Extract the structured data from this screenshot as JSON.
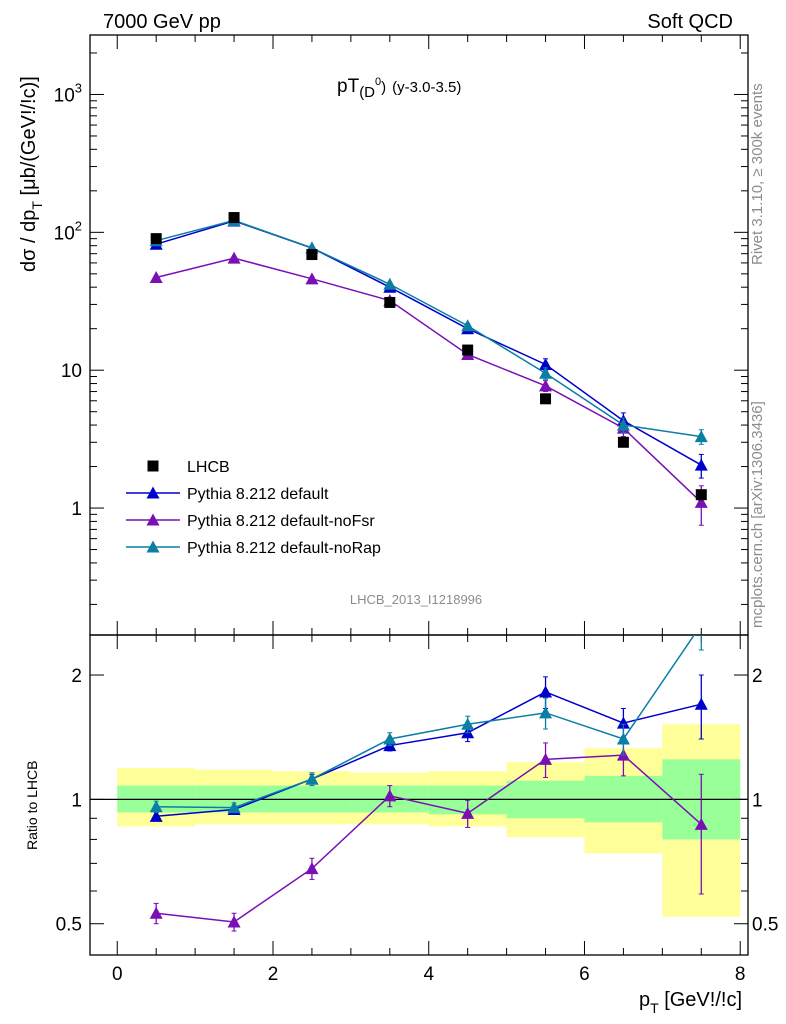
{
  "header": {
    "left": "7000 GeV pp",
    "right": "Soft QCD"
  },
  "side_text": {
    "rivet": "Rivet 3.1.10, ≥ 300k events",
    "mcplots": "mcplots.cern.ch [arXiv:1306.3436]"
  },
  "chart_data": [
    {
      "type": "scatter",
      "panel": "main",
      "title_main": "pT",
      "title_sub": "(D",
      "title_sup": "0",
      "title_close": ")",
      "title_range": "(y-3.0-3.5)",
      "ylabel_main": "dσ / dp",
      "ylabel_sub": "T",
      "ylabel_rest": " [μb/(GeV!/!c)]",
      "watermark": "LHCB_2013_I1218996",
      "yscale": "log",
      "xlim": [
        -0.35,
        8.1
      ],
      "ylim": [
        0.12,
        2700
      ],
      "ytick_labels": [
        "1",
        "10",
        "10",
        "10"
      ],
      "ytick_sups": [
        "",
        "",
        "2",
        "3"
      ],
      "x": [
        0.5,
        1.5,
        2.5,
        3.5,
        4.5,
        5.5,
        6.5,
        7.5
      ],
      "series": [
        {
          "name": "LHCB",
          "color": "#000000",
          "marker": "square",
          "values": [
            90,
            128,
            69,
            31,
            14,
            6.2,
            3.0,
            1.25
          ],
          "errors": [
            2,
            3,
            2,
            1,
            0.5,
            0.3,
            0.15,
            0.1
          ]
        },
        {
          "name": "Pythia 8.212 default",
          "color": "#0000cc",
          "marker": "triangle",
          "values": [
            82,
            121,
            77,
            40,
            20,
            11,
            4.3,
            2.05
          ],
          "errors": [
            1.5,
            2,
            1.5,
            1,
            0.8,
            1.1,
            0.6,
            0.4
          ]
        },
        {
          "name": "Pythia 8.212 default-noFsr",
          "color": "#7a0fb4",
          "marker": "triangle",
          "values": [
            47,
            65,
            46,
            32,
            13,
            7.7,
            3.8,
            1.1
          ],
          "errors": [
            1.2,
            1.5,
            1.2,
            1,
            0.8,
            0.7,
            0.5,
            0.35
          ]
        },
        {
          "name": "Pythia 8.212 default-noRap",
          "color": "#0a7ea4",
          "marker": "triangle",
          "values": [
            87,
            122,
            77,
            42,
            21,
            9.5,
            4.0,
            3.3
          ],
          "errors": [
            1.5,
            2,
            1.5,
            1,
            0.8,
            0.9,
            0.5,
            0.4
          ]
        }
      ]
    },
    {
      "type": "scatter",
      "panel": "ratio",
      "ylabel": "Ratio to LHCB",
      "xlabel_main": "p",
      "xlabel_sub": "T",
      "xlabel_rest": " [GeV!/!c]",
      "yscale": "log",
      "xlim": [
        -0.35,
        8.1
      ],
      "ylim": [
        0.42,
        2.5
      ],
      "xticks": [
        0,
        2,
        4,
        6,
        8
      ],
      "yticks": [
        0.5,
        1,
        2
      ],
      "ytick_labels": [
        "0.5",
        "1",
        "2"
      ],
      "reference": 1,
      "band_bins": [
        [
          0,
          1
        ],
        [
          1,
          2
        ],
        [
          2,
          3
        ],
        [
          3,
          4
        ],
        [
          4,
          5
        ],
        [
          5,
          6
        ],
        [
          6,
          7
        ],
        [
          7,
          8
        ]
      ],
      "band_yellow": [
        [
          0.86,
          1.19
        ],
        [
          0.87,
          1.18
        ],
        [
          0.87,
          1.17
        ],
        [
          0.87,
          1.16
        ],
        [
          0.86,
          1.17
        ],
        [
          0.81,
          1.23
        ],
        [
          0.74,
          1.33
        ],
        [
          0.52,
          1.52
        ]
      ],
      "band_green": [
        [
          0.93,
          1.08
        ],
        [
          0.93,
          1.08
        ],
        [
          0.93,
          1.08
        ],
        [
          0.93,
          1.08
        ],
        [
          0.92,
          1.08
        ],
        [
          0.9,
          1.11
        ],
        [
          0.88,
          1.14
        ],
        [
          0.8,
          1.25
        ]
      ],
      "x": [
        0.5,
        1.5,
        2.5,
        3.5,
        4.5,
        5.5,
        6.5,
        7.5
      ],
      "series": [
        {
          "name": "Pythia 8.212 default",
          "color": "#0000cc",
          "values": [
            0.91,
            0.945,
            1.12,
            1.35,
            1.45,
            1.82,
            1.53,
            1.7
          ],
          "errors": [
            0.02,
            0.02,
            0.03,
            0.04,
            0.07,
            0.16,
            0.13,
            0.3
          ]
        },
        {
          "name": "Pythia 8.212 default-noFsr",
          "color": "#7a0fb4",
          "values": [
            0.53,
            0.505,
            0.68,
            1.02,
            0.925,
            1.25,
            1.28,
            0.87
          ],
          "errors": [
            0.03,
            0.025,
            0.04,
            0.06,
            0.07,
            0.12,
            0.14,
            0.28
          ]
        },
        {
          "name": "Pythia 8.212 default-noRap",
          "color": "#0a7ea4",
          "values": [
            0.96,
            0.955,
            1.12,
            1.4,
            1.52,
            1.62,
            1.4,
            2.65
          ],
          "errors": [
            0.03,
            0.025,
            0.04,
            0.05,
            0.07,
            0.14,
            0.12,
            0.35
          ]
        }
      ]
    }
  ]
}
